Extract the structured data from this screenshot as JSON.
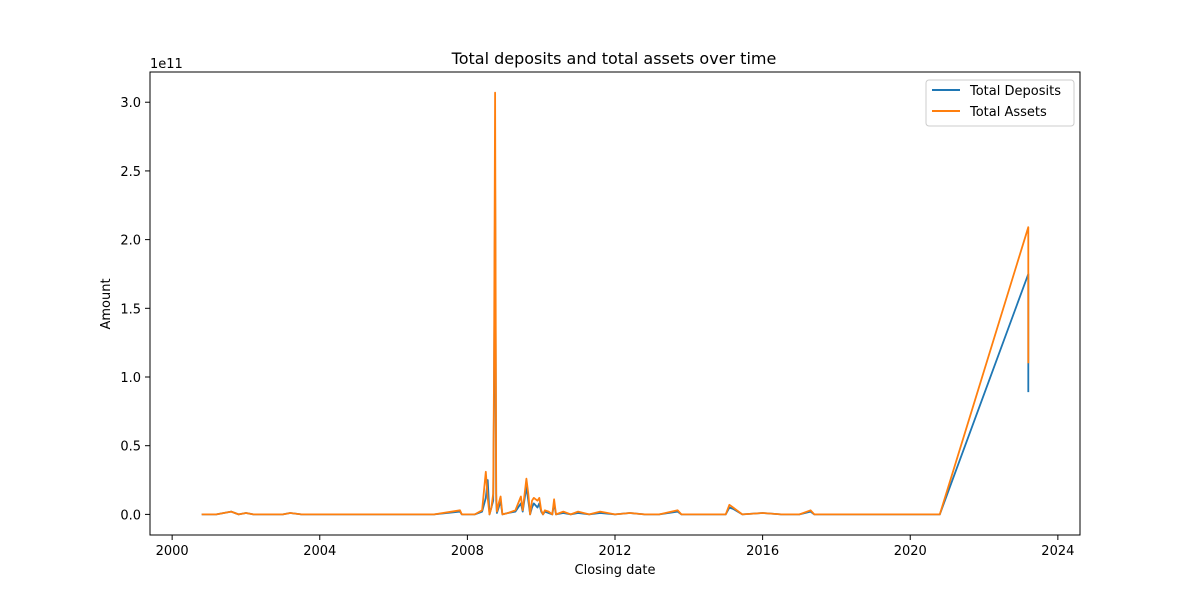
{
  "chart_data": {
    "type": "line",
    "title": "Total deposits and total assets over time",
    "xlabel": "Closing date",
    "ylabel": "Amount",
    "y_offset_label": "1e11",
    "xlim": [
      1999.4,
      2024.6
    ],
    "ylim": [
      -0.15,
      3.22
    ],
    "x_ticks": [
      2000,
      2004,
      2008,
      2012,
      2016,
      2020,
      2024
    ],
    "x_tick_labels": [
      "2000",
      "2004",
      "2008",
      "2012",
      "2016",
      "2020",
      "2024"
    ],
    "y_ticks": [
      0.0,
      0.5,
      1.0,
      1.5,
      2.0,
      2.5,
      3.0
    ],
    "y_tick_labels": [
      "0.0",
      "0.5",
      "1.0",
      "1.5",
      "2.0",
      "2.5",
      "3.0"
    ],
    "legend_position": "top-right",
    "series": [
      {
        "name": "Total Deposits",
        "color": "#1f77b4",
        "x": [
          2000.8,
          2001.2,
          2001.4,
          2001.6,
          2001.8,
          2002.0,
          2002.2,
          2002.5,
          2002.8,
          2003.0,
          2003.2,
          2003.5,
          2007.1,
          2007.8,
          2007.85,
          2008.2,
          2008.4,
          2008.5,
          2008.55,
          2008.6,
          2008.65,
          2008.7,
          2008.72,
          2008.75,
          2008.78,
          2008.8,
          2008.85,
          2008.9,
          2008.95,
          2009.1,
          2009.3,
          2009.45,
          2009.5,
          2009.6,
          2009.65,
          2009.7,
          2009.75,
          2009.8,
          2009.9,
          2009.95,
          2010.0,
          2010.05,
          2010.1,
          2010.2,
          2010.3,
          2010.35,
          2010.4,
          2010.6,
          2010.8,
          2011.0,
          2011.3,
          2011.6,
          2012.0,
          2012.4,
          2012.8,
          2013.2,
          2013.7,
          2013.8,
          2014.5,
          2015.0,
          2015.1,
          2015.2,
          2015.45,
          2016.0,
          2016.5,
          2017.0,
          2017.3,
          2017.4,
          2018.0,
          2020.8,
          2023.2,
          2023.2
        ],
        "values": [
          0.0,
          0.0,
          0.01,
          0.02,
          0.0,
          0.01,
          0.0,
          0.0,
          0.0,
          0.0,
          0.01,
          0.0,
          0.0,
          0.02,
          0.0,
          0.0,
          0.02,
          0.12,
          0.25,
          0.0,
          0.05,
          0.1,
          0.8,
          2.4,
          0.1,
          0.01,
          0.05,
          0.1,
          0.0,
          0.01,
          0.02,
          0.08,
          0.02,
          0.2,
          0.1,
          0.0,
          0.05,
          0.08,
          0.05,
          0.08,
          0.02,
          0.0,
          0.02,
          0.01,
          0.0,
          0.08,
          0.0,
          0.01,
          0.0,
          0.01,
          0.0,
          0.01,
          0.0,
          0.01,
          0.0,
          0.0,
          0.02,
          0.0,
          0.0,
          0.0,
          0.05,
          0.04,
          0.0,
          0.01,
          0.0,
          0.0,
          0.02,
          0.0,
          0.0,
          0.0,
          1.75,
          0.89
        ]
      },
      {
        "name": "Total Assets",
        "color": "#ff7f0e",
        "x": [
          2000.8,
          2001.2,
          2001.4,
          2001.6,
          2001.8,
          2002.0,
          2002.2,
          2002.5,
          2002.8,
          2003.0,
          2003.2,
          2003.5,
          2007.1,
          2007.8,
          2007.85,
          2008.2,
          2008.4,
          2008.5,
          2008.55,
          2008.6,
          2008.65,
          2008.7,
          2008.72,
          2008.75,
          2008.78,
          2008.8,
          2008.85,
          2008.9,
          2008.95,
          2009.1,
          2009.3,
          2009.45,
          2009.5,
          2009.6,
          2009.65,
          2009.7,
          2009.75,
          2009.8,
          2009.9,
          2009.95,
          2010.0,
          2010.05,
          2010.1,
          2010.2,
          2010.3,
          2010.35,
          2010.4,
          2010.6,
          2010.8,
          2011.0,
          2011.3,
          2011.6,
          2012.0,
          2012.4,
          2012.8,
          2013.2,
          2013.7,
          2013.8,
          2014.5,
          2015.0,
          2015.1,
          2015.2,
          2015.45,
          2016.0,
          2016.5,
          2017.0,
          2017.3,
          2017.4,
          2018.0,
          2020.8,
          2023.2,
          2023.2
        ],
        "values": [
          0.0,
          0.0,
          0.01,
          0.02,
          0.0,
          0.01,
          0.0,
          0.0,
          0.0,
          0.0,
          0.01,
          0.0,
          0.0,
          0.03,
          0.0,
          0.0,
          0.03,
          0.31,
          0.12,
          0.0,
          0.05,
          0.15,
          1.0,
          3.07,
          0.15,
          0.02,
          0.08,
          0.13,
          0.0,
          0.01,
          0.03,
          0.13,
          0.03,
          0.26,
          0.15,
          0.0,
          0.1,
          0.12,
          0.1,
          0.12,
          0.03,
          0.0,
          0.03,
          0.02,
          0.0,
          0.11,
          0.0,
          0.02,
          0.0,
          0.02,
          0.0,
          0.02,
          0.0,
          0.01,
          0.0,
          0.0,
          0.03,
          0.0,
          0.0,
          0.0,
          0.07,
          0.05,
          0.0,
          0.01,
          0.0,
          0.0,
          0.03,
          0.0,
          0.0,
          0.0,
          2.09,
          1.1
        ]
      }
    ]
  }
}
